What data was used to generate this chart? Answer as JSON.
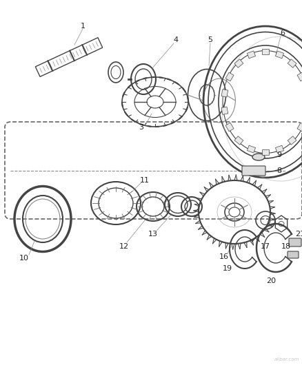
{
  "background_color": "#ffffff",
  "line_color": "#444444",
  "label_color": "#222222",
  "label_fontsize": 8,
  "fig_width": 4.39,
  "fig_height": 5.33,
  "dpi": 100,
  "watermark": "allpar.com"
}
